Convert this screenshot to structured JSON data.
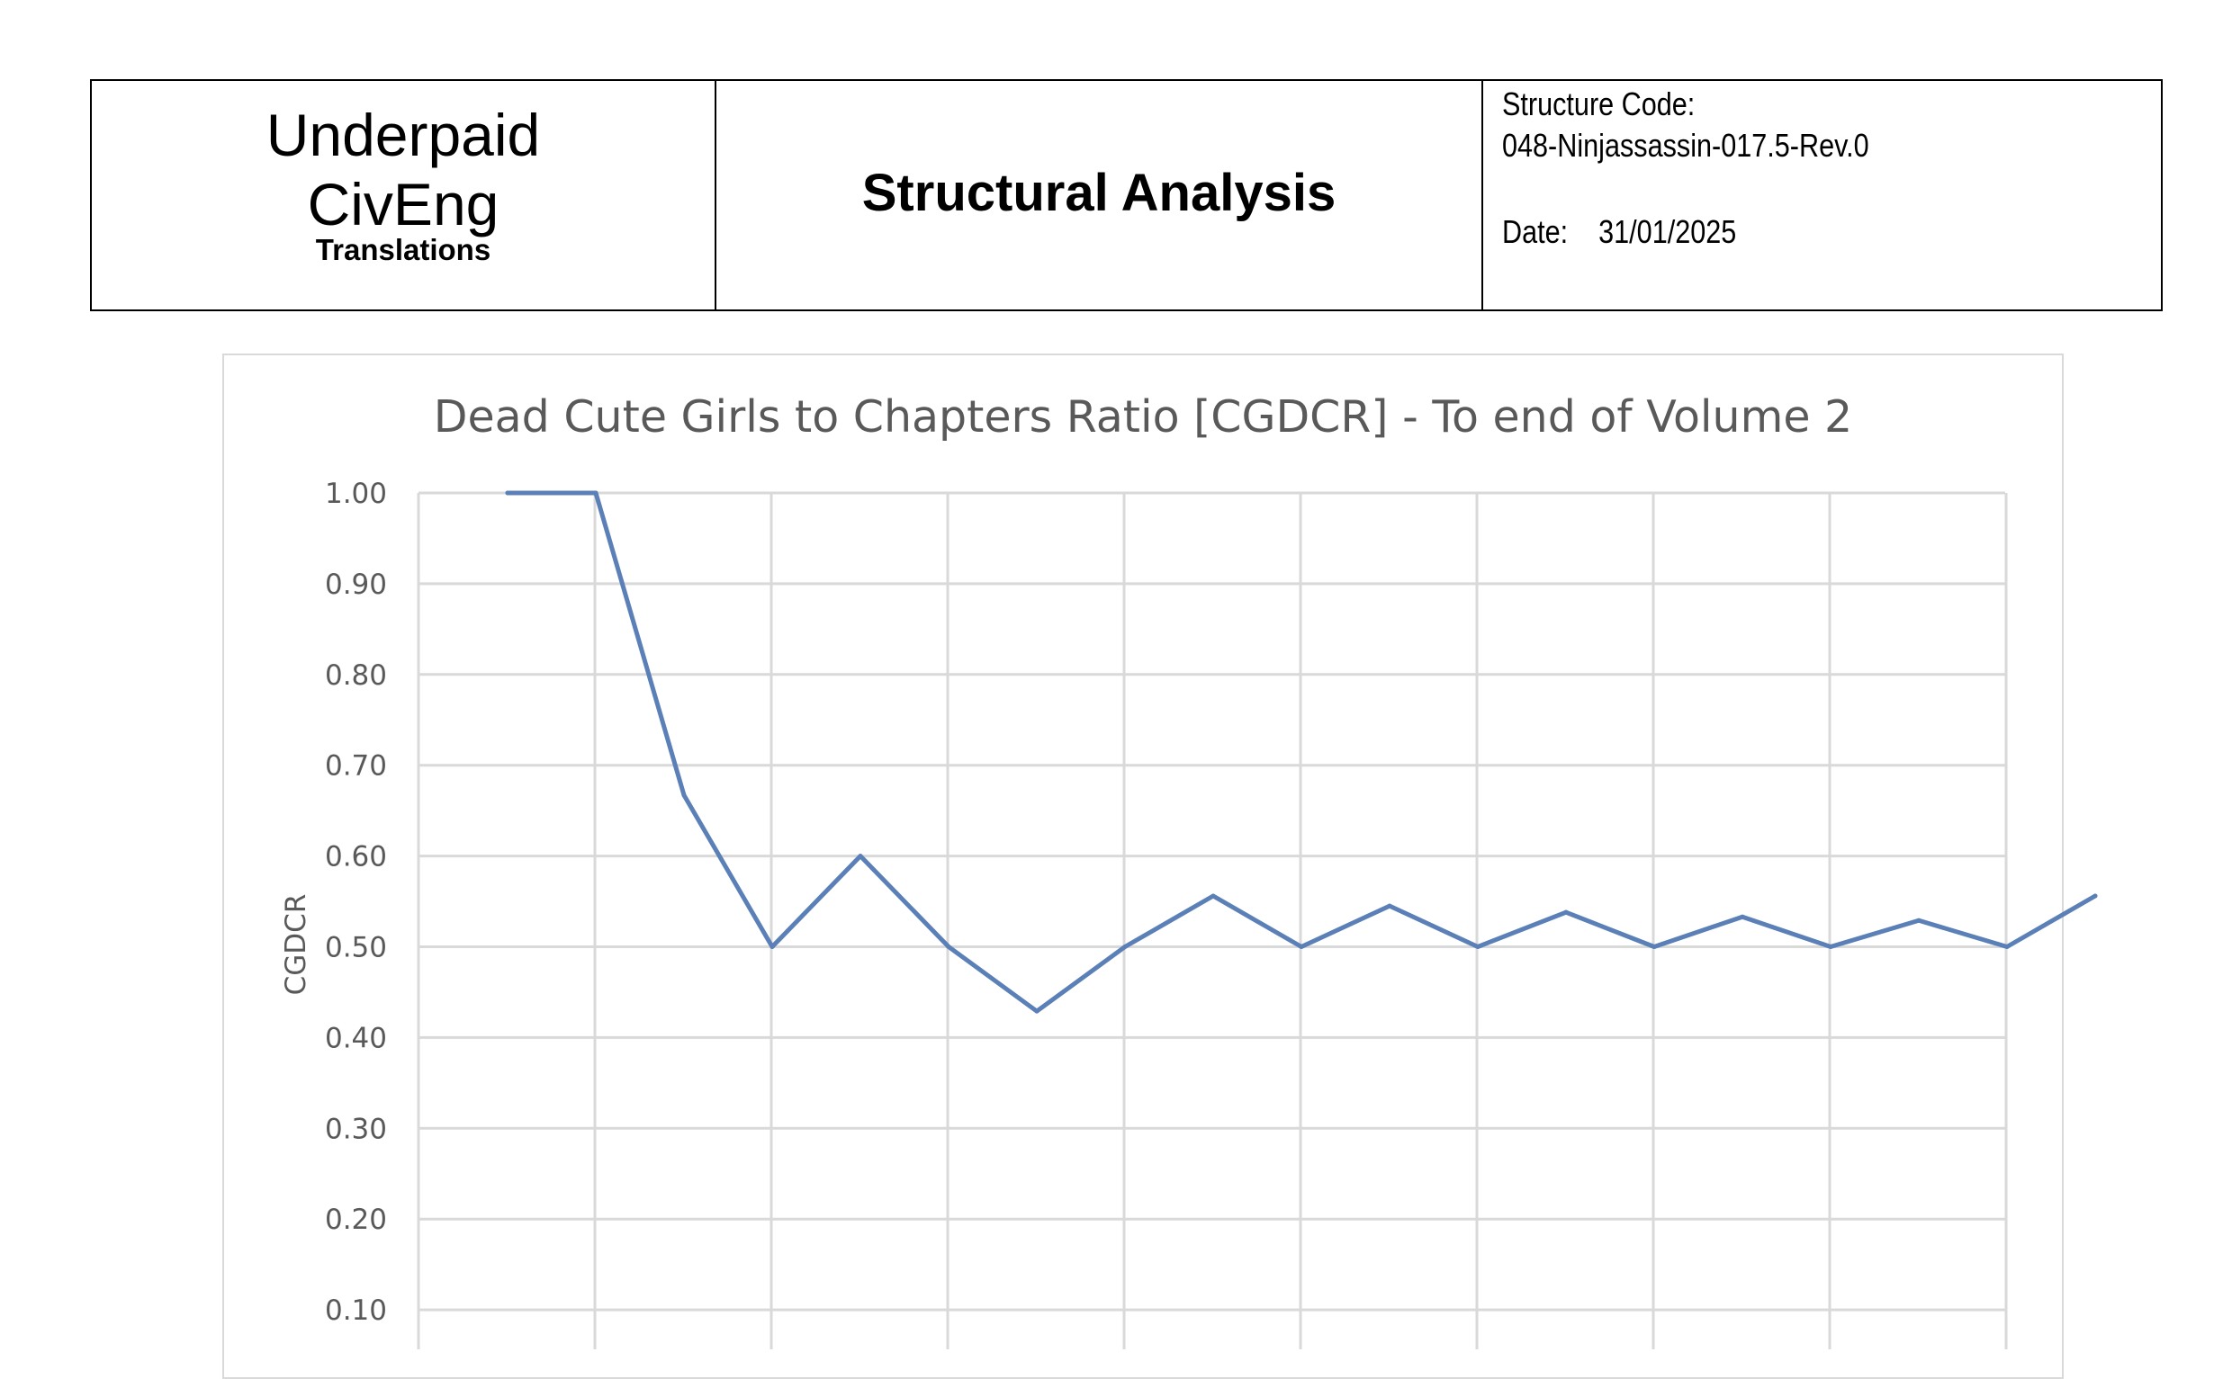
{
  "header": {
    "logo": {
      "line1": "Underpaid",
      "line2": "CivEng",
      "line3": "Translations"
    },
    "title": "Structural Analysis",
    "structure_code_label": "Structure Code:",
    "structure_code_value": "048-Ninjassassin-017.5-Rev.0",
    "date_label": "Date:",
    "date_value": "31/01/2025"
  },
  "chart_data": {
    "type": "line",
    "title": "Dead Cute Girls to Chapters Ratio [CGDCR] - To end of Volume 2",
    "xlabel": "",
    "ylabel": "CGDCR",
    "ylim": [
      0,
      1
    ],
    "yticks": [
      "1.00",
      "0.90",
      "0.80",
      "0.70",
      "0.60",
      "0.50",
      "0.40",
      "0.30",
      "0.20",
      "0.10"
    ],
    "grid": true,
    "series": [
      {
        "color": "#5b80b8",
        "x": [
          1,
          2,
          3,
          4,
          5,
          6,
          7,
          8,
          9,
          10,
          11,
          12,
          13,
          14,
          15,
          16,
          17,
          18,
          19
        ],
        "values": [
          1.0,
          1.0,
          0.667,
          0.5,
          0.6,
          0.5,
          0.429,
          0.5,
          0.556,
          0.5,
          0.545,
          0.5,
          0.538,
          0.5,
          0.533,
          0.5,
          0.529,
          0.5,
          0.556
        ]
      }
    ]
  }
}
